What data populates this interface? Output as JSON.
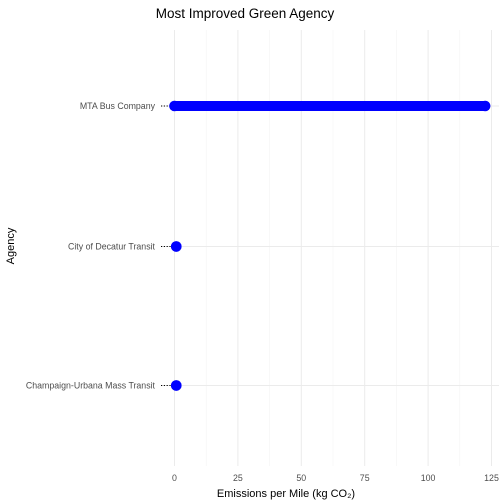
{
  "chart_data": {
    "type": "dumbbell",
    "title": "Most Improved Green Agency",
    "xlabel": "Emissions per Mile (kg CO₂)",
    "ylabel": "Agency",
    "xlim": [
      -5,
      125
    ],
    "x_ticks": [
      0,
      25,
      50,
      75,
      100,
      125
    ],
    "grid": true,
    "legend": "none",
    "categories": [
      "MTA Bus Company",
      "City of Decatur Transit",
      "Champaign-Urbana Mass Transit"
    ],
    "series": [
      {
        "values": [
          0,
          0.7,
          0.7
        ]
      },
      {
        "values": [
          122.5,
          0.7,
          0.7
        ]
      }
    ],
    "colors": {
      "point": "#0000ff",
      "connector": "#0000ff",
      "leader": "#000000"
    }
  }
}
